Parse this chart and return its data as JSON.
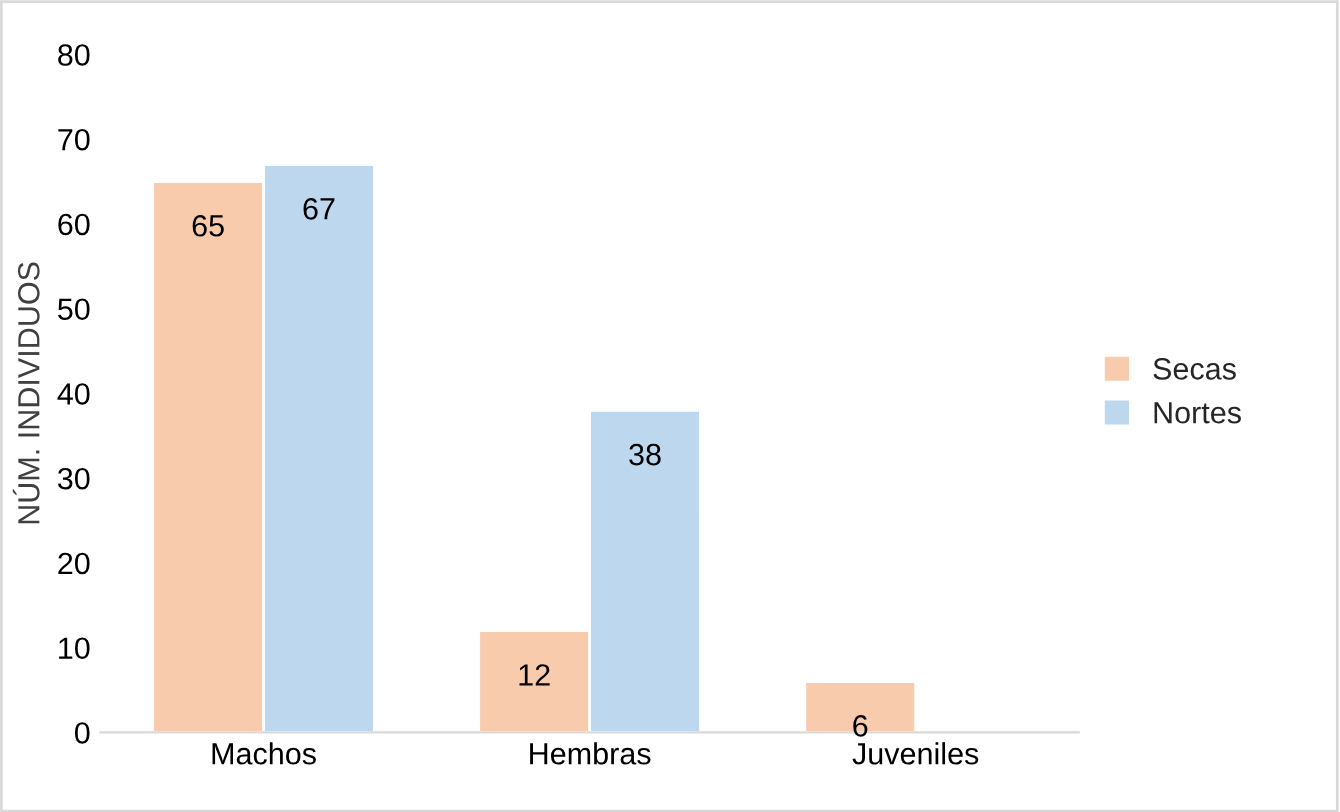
{
  "chart_data": {
    "type": "bar",
    "ylabel": "NÚM. INDIVIDUOS",
    "categories": [
      "Machos",
      "Hembras",
      "Juveniles"
    ],
    "series": [
      {
        "name": "Secas",
        "color": "#f8cbad",
        "values": [
          65,
          12,
          6
        ]
      },
      {
        "name": "Nortes",
        "color": "#bdd7ee",
        "values": [
          67,
          38,
          null
        ]
      }
    ],
    "ylim": [
      0,
      80
    ],
    "yticks": [
      0,
      10,
      20,
      30,
      40,
      50,
      60,
      70,
      80
    ],
    "data_labels": true,
    "legend": "right",
    "grid": false
  }
}
